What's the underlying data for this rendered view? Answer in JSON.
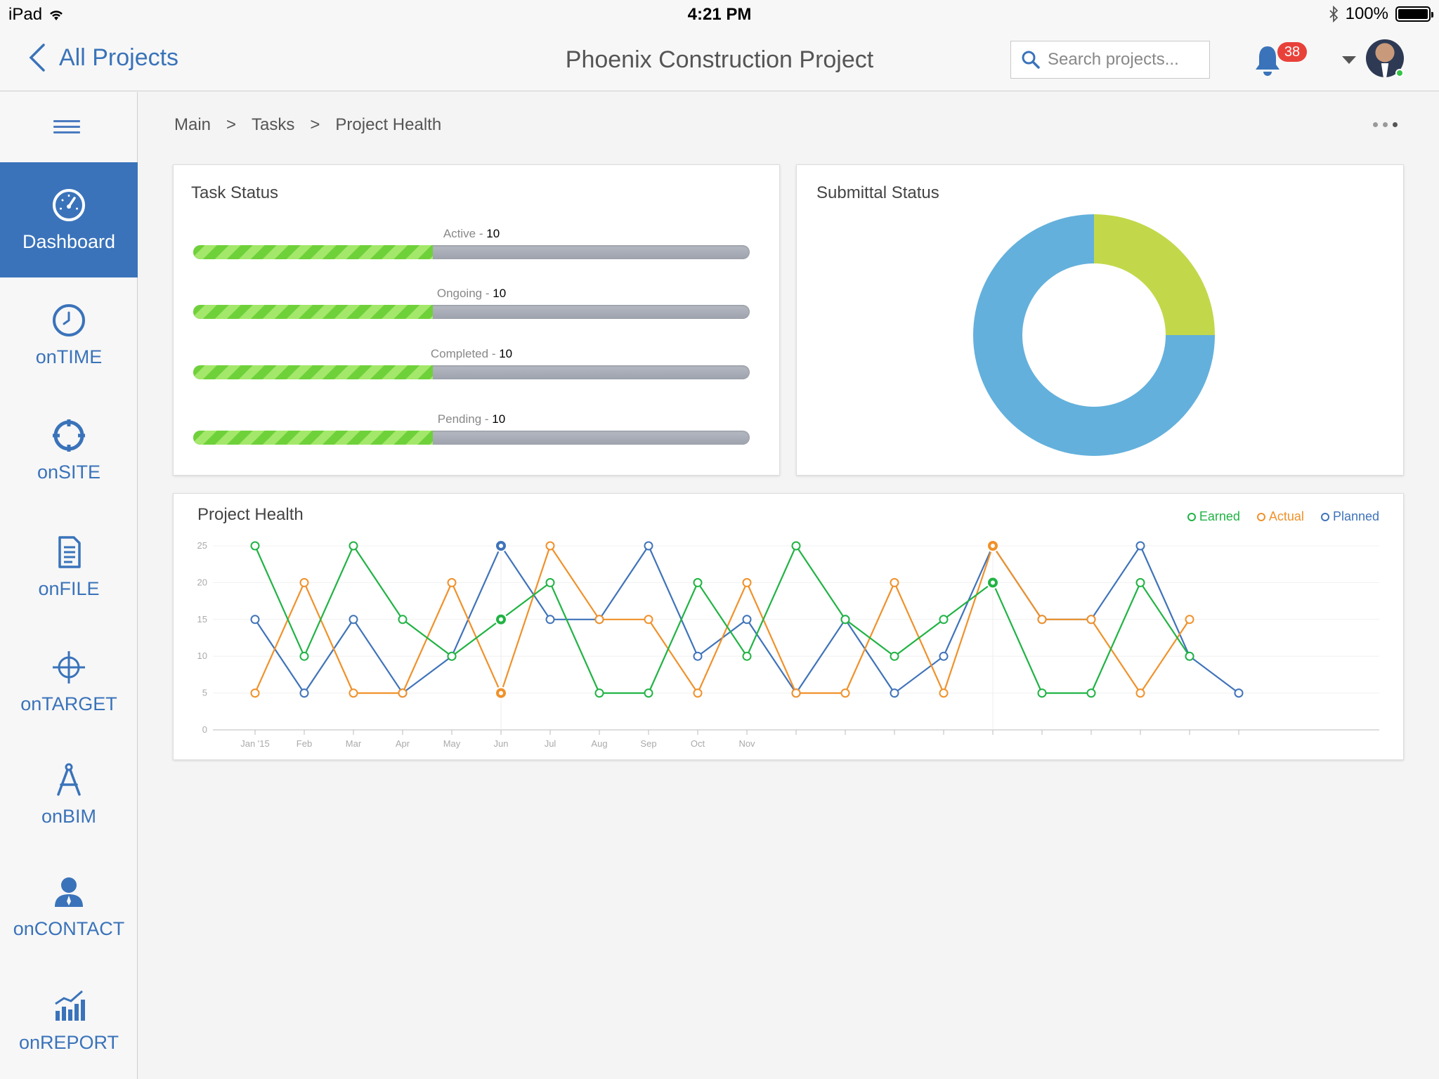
{
  "status_bar": {
    "device": "iPad",
    "time": "4:21 PM",
    "battery": "100%"
  },
  "header": {
    "back_label": "All Projects",
    "title": "Phoenix Construction Project",
    "search_placeholder": "Search projects...",
    "notification_count": "38"
  },
  "sidebar": {
    "items": [
      {
        "label": "Dashboard",
        "icon": "speedometer-icon",
        "active": true
      },
      {
        "label": "onTIME",
        "icon": "clock-icon"
      },
      {
        "label": "onSITE",
        "icon": "crosshair-circle-icon"
      },
      {
        "label": "onFILE",
        "icon": "document-icon"
      },
      {
        "label": "onTARGET",
        "icon": "target-icon"
      },
      {
        "label": "onBIM",
        "icon": "compass-drafting-icon"
      },
      {
        "label": "onCONTACT",
        "icon": "person-icon"
      },
      {
        "label": "onREPORT",
        "icon": "bar-chart-icon"
      }
    ]
  },
  "breadcrumb": [
    "Main",
    "Tasks",
    "Project Health"
  ],
  "task_status": {
    "title": "Task Status",
    "rows": [
      {
        "label": "Active",
        "value": "10",
        "progress": 0.43
      },
      {
        "label": "Ongoing",
        "value": "10",
        "progress": 0.43
      },
      {
        "label": "Completed",
        "value": "10",
        "progress": 0.43
      },
      {
        "label": "Pending",
        "value": "10",
        "progress": 0.43
      }
    ]
  },
  "submittal_status": {
    "title": "Submittal Status"
  },
  "chart_data": [
    {
      "type": "pie",
      "title": "Submittal Status",
      "values": [
        25,
        75
      ],
      "colors": [
        "#c2d84a",
        "#63b0dc"
      ],
      "donut": true
    },
    {
      "type": "line",
      "title": "Project Health",
      "x_tick_labels": [
        "Jan '15",
        "Feb",
        "Mar",
        "Apr",
        "May",
        "Jun",
        "Jul",
        "Aug",
        "Sep",
        "Oct",
        "Nov"
      ],
      "total_points": 21,
      "ylim": [
        0,
        25
      ],
      "y_ticks": [
        0,
        5,
        10,
        15,
        20,
        25
      ],
      "grid": true,
      "legend": "top-right",
      "series": [
        {
          "name": "Earned",
          "color": "#20b344",
          "values": [
            25,
            10,
            25,
            15,
            10,
            15,
            20,
            5,
            5,
            20,
            10,
            25,
            15,
            10,
            15,
            20,
            5,
            5,
            20,
            10
          ]
        },
        {
          "name": "Actual",
          "color": "#f0912a",
          "values": [
            5,
            20,
            5,
            5,
            20,
            5,
            25,
            15,
            15,
            5,
            20,
            5,
            5,
            20,
            5,
            25,
            15,
            15,
            5,
            15
          ]
        },
        {
          "name": "Planned",
          "color": "#3f73b9",
          "values": [
            15,
            5,
            15,
            5,
            10,
            25,
            15,
            15,
            25,
            10,
            15,
            5,
            15,
            5,
            10,
            25,
            15,
            15,
            25,
            10,
            5
          ]
        }
      ],
      "highlighted_points": [
        5,
        15
      ]
    }
  ]
}
